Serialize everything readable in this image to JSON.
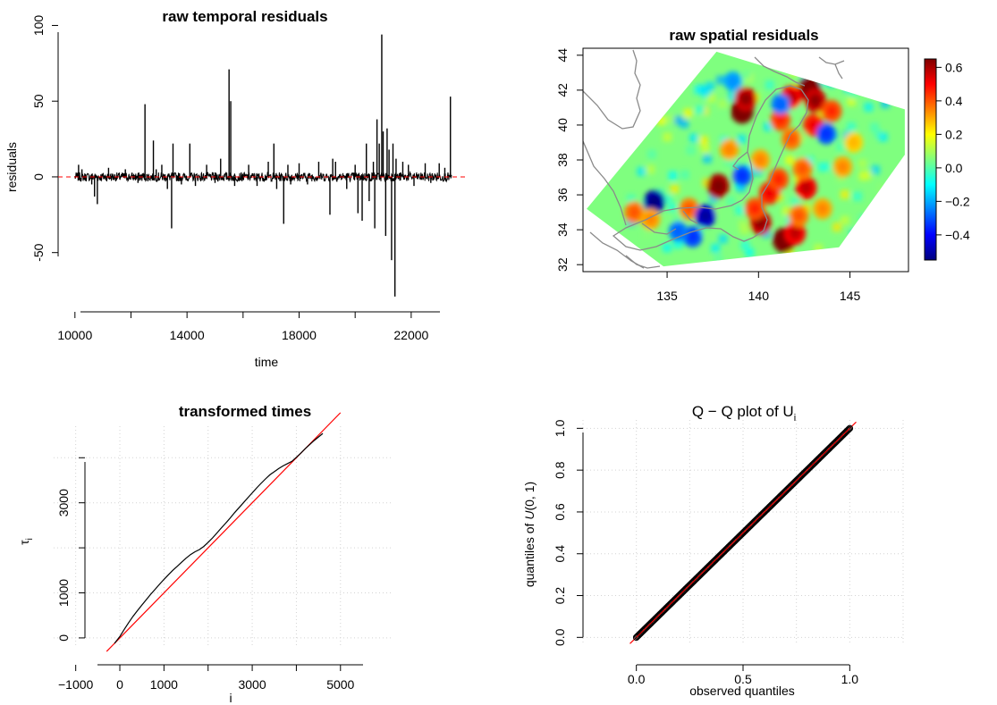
{
  "chart_data": [
    {
      "id": "temporal",
      "type": "line",
      "title": "raw temporal residuals",
      "xlabel": "time",
      "ylabel": "residuals",
      "xlim": [
        9400,
        23600
      ],
      "ylim": [
        -85,
        105
      ],
      "xticks": [
        10000,
        14000,
        18000,
        22000
      ],
      "xticks_minor": [
        12000,
        16000,
        20000
      ],
      "yticks": [
        -50,
        0,
        50,
        100
      ],
      "reference_line": {
        "y": 0,
        "color": "#ff0000",
        "style": "dashed"
      },
      "spikes": [
        {
          "x": 10130,
          "y": 8
        },
        {
          "x": 10250,
          "y": 5
        },
        {
          "x": 10600,
          "y": -5
        },
        {
          "x": 10700,
          "y": -13
        },
        {
          "x": 10800,
          "y": -18
        },
        {
          "x": 11200,
          "y": 6
        },
        {
          "x": 11800,
          "y": 5
        },
        {
          "x": 12250,
          "y": -4
        },
        {
          "x": 12500,
          "y": 48
        },
        {
          "x": 12800,
          "y": 24
        },
        {
          "x": 12900,
          "y": 5
        },
        {
          "x": 13100,
          "y": 8
        },
        {
          "x": 13300,
          "y": -8
        },
        {
          "x": 13450,
          "y": -34
        },
        {
          "x": 13500,
          "y": 22
        },
        {
          "x": 13800,
          "y": -5
        },
        {
          "x": 14100,
          "y": 22
        },
        {
          "x": 14300,
          "y": -6
        },
        {
          "x": 14700,
          "y": 8
        },
        {
          "x": 15000,
          "y": -4
        },
        {
          "x": 15200,
          "y": 12
        },
        {
          "x": 15500,
          "y": 71
        },
        {
          "x": 15560,
          "y": 50
        },
        {
          "x": 15700,
          "y": -6
        },
        {
          "x": 16200,
          "y": 8
        },
        {
          "x": 16500,
          "y": -6
        },
        {
          "x": 16900,
          "y": 10
        },
        {
          "x": 17100,
          "y": 22
        },
        {
          "x": 17200,
          "y": -8
        },
        {
          "x": 17450,
          "y": -31
        },
        {
          "x": 17600,
          "y": 8
        },
        {
          "x": 17700,
          "y": -5
        },
        {
          "x": 18000,
          "y": 9
        },
        {
          "x": 18300,
          "y": -5
        },
        {
          "x": 18700,
          "y": 10
        },
        {
          "x": 19100,
          "y": -25
        },
        {
          "x": 19200,
          "y": 12
        },
        {
          "x": 19300,
          "y": 10
        },
        {
          "x": 19700,
          "y": -8
        },
        {
          "x": 20000,
          "y": 8
        },
        {
          "x": 20100,
          "y": -24
        },
        {
          "x": 20250,
          "y": -29
        },
        {
          "x": 20400,
          "y": 22
        },
        {
          "x": 20500,
          "y": -16
        },
        {
          "x": 20650,
          "y": 10
        },
        {
          "x": 20700,
          "y": -34
        },
        {
          "x": 20780,
          "y": 38
        },
        {
          "x": 20860,
          "y": 22
        },
        {
          "x": 20950,
          "y": 94
        },
        {
          "x": 21000,
          "y": 30
        },
        {
          "x": 21090,
          "y": -39
        },
        {
          "x": 21140,
          "y": 32
        },
        {
          "x": 21210,
          "y": 18
        },
        {
          "x": 21300,
          "y": -55
        },
        {
          "x": 21350,
          "y": 22
        },
        {
          "x": 21420,
          "y": -79
        },
        {
          "x": 21460,
          "y": 12
        },
        {
          "x": 21700,
          "y": 10
        },
        {
          "x": 21900,
          "y": 8
        },
        {
          "x": 22100,
          "y": -6
        },
        {
          "x": 22500,
          "y": 9
        },
        {
          "x": 22700,
          "y": -4
        },
        {
          "x": 23000,
          "y": 9
        },
        {
          "x": 23200,
          "y": 6
        },
        {
          "x": 23400,
          "y": 53
        }
      ],
      "x_range": [
        10000,
        23450
      ],
      "noise_amplitude": 3
    },
    {
      "id": "spatial",
      "type": "heatmap",
      "title": "raw spatial residuals",
      "xlim": [
        130.4,
        148.2
      ],
      "ylim": [
        31.6,
        44.4
      ],
      "xticks": [
        135,
        140,
        145
      ],
      "yticks": [
        32,
        34,
        36,
        38,
        40,
        42,
        44
      ],
      "colorbar": {
        "ticks": [
          "0.6",
          "0.4",
          "0.2",
          "0.0",
          "−0.2",
          "−0.4"
        ],
        "tick_values": [
          0.6,
          0.4,
          0.2,
          0.0,
          -0.2,
          -0.4
        ],
        "range": [
          -0.55,
          0.65
        ],
        "colormap": "jet"
      },
      "background_value": 0.0,
      "domain_polygon": [
        [
          130.6,
          35.2
        ],
        [
          137.7,
          44.2
        ],
        [
          148.0,
          40.9
        ],
        [
          148.0,
          38.3
        ],
        [
          144.4,
          33.0
        ],
        [
          134.8,
          31.9
        ]
      ],
      "hotspots": [
        {
          "lon": 139.1,
          "lat": 40.8,
          "value": 0.65
        },
        {
          "lon": 139.3,
          "lat": 41.5,
          "value": 0.55
        },
        {
          "lon": 142.8,
          "lat": 42.1,
          "value": 0.65
        },
        {
          "lon": 143.1,
          "lat": 41.4,
          "value": 0.55
        },
        {
          "lon": 141.8,
          "lat": 41.6,
          "value": 0.5
        },
        {
          "lon": 141.2,
          "lat": 40.3,
          "value": 0.4
        },
        {
          "lon": 141.8,
          "lat": 39.2,
          "value": 0.35
        },
        {
          "lon": 143.0,
          "lat": 40.0,
          "value": 0.45
        },
        {
          "lon": 144.0,
          "lat": 40.8,
          "value": 0.4
        },
        {
          "lon": 143.7,
          "lat": 39.5,
          "value": -0.3
        },
        {
          "lon": 141.2,
          "lat": 41.2,
          "value": -0.25
        },
        {
          "lon": 137.8,
          "lat": 36.5,
          "value": 0.6
        },
        {
          "lon": 140.6,
          "lat": 36.1,
          "value": 0.45
        },
        {
          "lon": 141.1,
          "lat": 36.9,
          "value": 0.4
        },
        {
          "lon": 142.6,
          "lat": 36.4,
          "value": 0.5
        },
        {
          "lon": 142.4,
          "lat": 37.5,
          "value": 0.35
        },
        {
          "lon": 141.4,
          "lat": 33.4,
          "value": 0.65
        },
        {
          "lon": 142.0,
          "lat": 33.8,
          "value": 0.5
        },
        {
          "lon": 140.1,
          "lat": 34.4,
          "value": 0.55
        },
        {
          "lon": 139.8,
          "lat": 35.2,
          "value": 0.4
        },
        {
          "lon": 134.3,
          "lat": 35.6,
          "value": -0.5
        },
        {
          "lon": 133.2,
          "lat": 35.0,
          "value": 0.35
        },
        {
          "lon": 134.1,
          "lat": 34.6,
          "value": 0.3
        },
        {
          "lon": 136.2,
          "lat": 35.2,
          "value": 0.35
        },
        {
          "lon": 137.1,
          "lat": 34.8,
          "value": -0.45
        },
        {
          "lon": 136.4,
          "lat": 33.6,
          "value": -0.3
        },
        {
          "lon": 135.6,
          "lat": 33.9,
          "value": -0.25
        },
        {
          "lon": 139.1,
          "lat": 37.1,
          "value": -0.3
        },
        {
          "lon": 138.4,
          "lat": 38.6,
          "value": 0.3
        },
        {
          "lon": 140.1,
          "lat": 38.0,
          "value": 0.3
        },
        {
          "lon": 144.6,
          "lat": 37.6,
          "value": 0.3
        },
        {
          "lon": 143.5,
          "lat": 35.2,
          "value": 0.3
        },
        {
          "lon": 145.2,
          "lat": 39.0,
          "value": 0.25
        },
        {
          "lon": 138.6,
          "lat": 42.5,
          "value": -0.2
        },
        {
          "lon": 142.2,
          "lat": 34.8,
          "value": 0.35
        }
      ]
    },
    {
      "id": "transformed",
      "type": "line",
      "title": "transformed times",
      "xlabel": "i",
      "ylabel": "τ",
      "ylabel_subscript": "i",
      "xlim": [
        -1500,
        6200
      ],
      "ylim": [
        -200,
        4700
      ],
      "xticks": [
        -1000,
        0,
        1000,
        3000,
        5000
      ],
      "xticks_minor": [
        2000,
        4000
      ],
      "yticks": [
        0,
        1000,
        3000
      ],
      "yticks_minor": [
        2000,
        4000
      ],
      "grid_x": [
        -1000,
        0,
        1000,
        2000,
        3000,
        4000,
        5000
      ],
      "grid_y": [
        0,
        1000,
        2000,
        3000,
        4000
      ],
      "reference_line": {
        "x": [
          -300,
          5000
        ],
        "y": [
          -300,
          5000
        ],
        "color": "#ff0000"
      },
      "series": [
        {
          "x": [
            -120,
            0,
            100,
            200,
            300,
            400,
            500,
            600,
            700,
            800,
            900,
            1000,
            1100,
            1200,
            1300,
            1400,
            1500,
            1600,
            1700,
            1800,
            1900,
            2000,
            2100,
            2200,
            2300,
            2400,
            2500,
            2600,
            2700,
            2800,
            2900,
            3000,
            3100,
            3200,
            3300,
            3400,
            3500,
            3600,
            3700,
            3800,
            3900,
            4000,
            4100,
            4200,
            4300,
            4400,
            4500,
            4600
          ],
          "y": [
            -120,
            30,
            190,
            340,
            480,
            610,
            730,
            850,
            970,
            1080,
            1190,
            1300,
            1400,
            1500,
            1590,
            1680,
            1770,
            1850,
            1910,
            1960,
            2030,
            2120,
            2220,
            2330,
            2440,
            2550,
            2660,
            2780,
            2890,
            3000,
            3110,
            3220,
            3330,
            3430,
            3530,
            3620,
            3690,
            3760,
            3820,
            3870,
            3920,
            4010,
            4100,
            4200,
            4290,
            4380,
            4460,
            4540
          ]
        }
      ]
    },
    {
      "id": "qq",
      "type": "scatter",
      "title": "Q − Q plot of U",
      "title_subscript": "i",
      "xlabel": "observed quantiles",
      "ylabel": "quantiles of ",
      "ylabel_italic": "U",
      "ylabel_tail": "(0, 1)",
      "xlim": [
        -0.25,
        1.25
      ],
      "ylim": [
        -0.02,
        1.04
      ],
      "xticks": [
        "0.0",
        "0.5",
        "1.0"
      ],
      "xtick_values": [
        0.0,
        0.5,
        1.0
      ],
      "yticks": [
        "0.0",
        "0.2",
        "0.4",
        "0.6",
        "0.8",
        "1.0"
      ],
      "ytick_values": [
        0.0,
        0.2,
        0.4,
        0.6,
        0.8,
        1.0
      ],
      "reference_line": {
        "slope": 1,
        "intercept": 0,
        "color": "#ff0000"
      },
      "points_from": 0.0,
      "points_to": 1.0,
      "n_points": 220,
      "marker": "open-circle"
    }
  ]
}
